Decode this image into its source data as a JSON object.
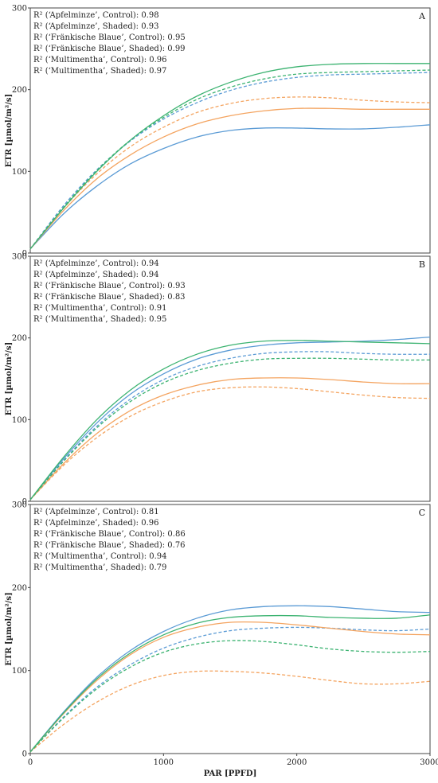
{
  "colors": {
    "Apfelminze": "#5b9bd5",
    "Fränkische Blaue": "#f4a460",
    "Multimentha": "#3cb371"
  },
  "chart_data": [
    {
      "type": "line",
      "panel": "A",
      "ylabel": "ETR [µmol/m²/s]",
      "xlim": [
        0,
        3000
      ],
      "ylim": [
        0,
        300
      ],
      "yticks": [
        0,
        100,
        200,
        300
      ],
      "r2": [
        "R² (‘Apfelminze’, Control): 0.98",
        "R² (‘Apfelminze’, Shaded): 0.93",
        "R² (‘Fränkische Blaue’, Control): 0.95",
        "R² (‘Fränkische Blaue’, Shaded): 0.99",
        "R² (‘Multimentha’, Control): 0.96",
        "R² (‘Multimentha’, Shaded): 0.97"
      ],
      "x": [
        0,
        250,
        500,
        750,
        1000,
        1250,
        1500,
        1750,
        2000,
        2250,
        2500,
        2750,
        3000
      ],
      "series": [
        {
          "cultivar": "Apfelminze",
          "treatment": "Control",
          "values": [
            5,
            48,
            82,
            109,
            128,
            142,
            150,
            153,
            153,
            152,
            152,
            154,
            157
          ]
        },
        {
          "cultivar": "Apfelminze",
          "treatment": "Shaded",
          "values": [
            5,
            58,
            102,
            137,
            164,
            184,
            199,
            209,
            215,
            218,
            219,
            220,
            221
          ]
        },
        {
          "cultivar": "Fränkische Blaue",
          "treatment": "Control",
          "values": [
            5,
            52,
            91,
            120,
            142,
            158,
            168,
            174,
            177,
            177,
            176,
            176,
            176
          ]
        },
        {
          "cultivar": "Fränkische Blaue",
          "treatment": "Shaded",
          "values": [
            5,
            55,
            97,
            130,
            154,
            172,
            183,
            189,
            191,
            190,
            187,
            185,
            184
          ]
        },
        {
          "cultivar": "Multimentha",
          "treatment": "Control",
          "values": [
            5,
            55,
            100,
            138,
            168,
            192,
            209,
            221,
            228,
            231,
            232,
            232,
            232
          ]
        },
        {
          "cultivar": "Multimentha",
          "treatment": "Shaded",
          "values": [
            5,
            56,
            101,
            138,
            166,
            188,
            203,
            213,
            219,
            221,
            222,
            223,
            224
          ]
        }
      ]
    },
    {
      "type": "line",
      "panel": "B",
      "ylabel": "ETR [µmol/m²/s]",
      "xlim": [
        0,
        3000
      ],
      "ylim": [
        0,
        300
      ],
      "yticks": [
        0,
        100,
        200,
        300
      ],
      "r2": [
        "R² (‘Apfelminze’, Control): 0.94",
        "R² (‘Apfelminze’, Shaded): 0.94",
        "R² (‘Fränkische Blaue’, Control): 0.93",
        "R² (‘Fränkische Blaue’, Shaded): 0.83",
        "R² (‘Multimentha’, Control): 0.91",
        "R² (‘Multimentha’, Shaded): 0.95"
      ],
      "x": [
        0,
        250,
        500,
        750,
        1000,
        1250,
        1500,
        1750,
        2000,
        2250,
        2500,
        2750,
        3000
      ],
      "series": [
        {
          "cultivar": "Apfelminze",
          "treatment": "Control",
          "values": [
            2,
            52,
            96,
            131,
            156,
            174,
            185,
            191,
            194,
            195,
            196,
            198,
            201
          ]
        },
        {
          "cultivar": "Apfelminze",
          "treatment": "Shaded",
          "values": [
            2,
            50,
            92,
            125,
            149,
            165,
            175,
            181,
            183,
            183,
            181,
            180,
            180
          ]
        },
        {
          "cultivar": "Fränkische Blaue",
          "treatment": "Control",
          "values": [
            2,
            46,
            83,
            111,
            130,
            142,
            149,
            151,
            151,
            149,
            146,
            144,
            144
          ]
        },
        {
          "cultivar": "Fränkische Blaue",
          "treatment": "Shaded",
          "values": [
            2,
            44,
            78,
            104,
            122,
            134,
            139,
            140,
            138,
            134,
            130,
            127,
            126
          ]
        },
        {
          "cultivar": "Multimentha",
          "treatment": "Control",
          "values": [
            2,
            54,
            100,
            136,
            162,
            180,
            191,
            196,
            197,
            196,
            195,
            194,
            193
          ]
        },
        {
          "cultivar": "Multimentha",
          "treatment": "Shaded",
          "values": [
            2,
            49,
            90,
            122,
            145,
            160,
            169,
            174,
            175,
            175,
            174,
            173,
            173
          ]
        }
      ]
    },
    {
      "type": "line",
      "panel": "C",
      "ylabel": "ETR [µmol/m²/s]",
      "xlabel": "PAR [PPFD]",
      "xlim": [
        0,
        3000
      ],
      "ylim": [
        0,
        300
      ],
      "yticks": [
        0,
        100,
        200,
        300
      ],
      "xticks": [
        0,
        1000,
        2000,
        3000
      ],
      "r2": [
        "R² (‘Apfelminze’, Control): 0.81",
        "R² (‘Apfelminze’, Shaded): 0.96",
        "R² (‘Fränkische Blaue’, Control): 0.86",
        "R² (‘Fränkische Blaue’, Shaded): 0.76",
        "R² (‘Multimentha’, Control): 0.94",
        "R² (‘Multimentha’, Shaded): 0.79"
      ],
      "x": [
        0,
        250,
        500,
        750,
        1000,
        1250,
        1500,
        1750,
        2000,
        2250,
        2500,
        2750,
        3000
      ],
      "series": [
        {
          "cultivar": "Apfelminze",
          "treatment": "Control",
          "values": [
            2,
            50,
            92,
            124,
            147,
            163,
            173,
            177,
            178,
            177,
            174,
            171,
            170
          ]
        },
        {
          "cultivar": "Apfelminze",
          "treatment": "Shaded",
          "values": [
            2,
            44,
            80,
            107,
            127,
            140,
            148,
            151,
            152,
            151,
            149,
            148,
            150
          ]
        },
        {
          "cultivar": "Fränkische Blaue",
          "treatment": "Control",
          "values": [
            2,
            48,
            88,
            119,
            140,
            152,
            158,
            158,
            155,
            151,
            147,
            144,
            143
          ]
        },
        {
          "cultivar": "Fränkische Blaue",
          "treatment": "Shaded",
          "values": [
            2,
            35,
            62,
            82,
            94,
            99,
            99,
            97,
            93,
            88,
            84,
            84,
            87
          ]
        },
        {
          "cultivar": "Multimentha",
          "treatment": "Control",
          "values": [
            2,
            49,
            90,
            121,
            143,
            157,
            164,
            166,
            166,
            164,
            163,
            163,
            167
          ]
        },
        {
          "cultivar": "Multimentha",
          "treatment": "Shaded",
          "values": [
            2,
            43,
            78,
            104,
            122,
            132,
            136,
            135,
            131,
            126,
            123,
            122,
            123
          ]
        }
      ]
    }
  ]
}
